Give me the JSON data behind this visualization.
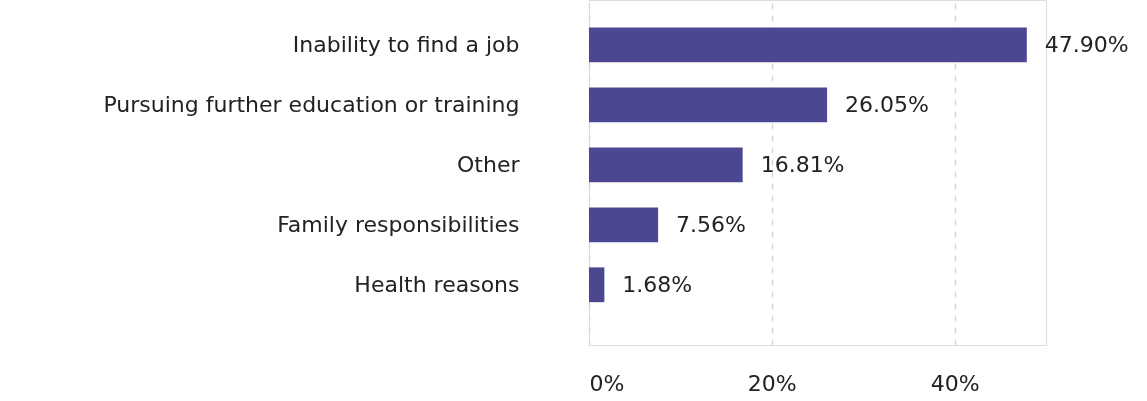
{
  "chart_data": {
    "type": "bar",
    "orientation": "horizontal",
    "categories": [
      "Inability to find a job",
      "Pursuing further education or training",
      "Other",
      "Family responsibilities",
      "Health reasons"
    ],
    "values": [
      47.9,
      26.05,
      16.81,
      7.56,
      1.68
    ],
    "value_labels": [
      "47.90%",
      "26.05%",
      "16.81%",
      "7.56%",
      "1.68%"
    ],
    "color": "#4b4791",
    "xlim": [
      0,
      50
    ],
    "xticks": [
      {
        "value": 0,
        "label": "0%"
      },
      {
        "value": 20,
        "label": "20%"
      },
      {
        "value": 40,
        "label": "40%"
      }
    ],
    "grid": "x"
  }
}
